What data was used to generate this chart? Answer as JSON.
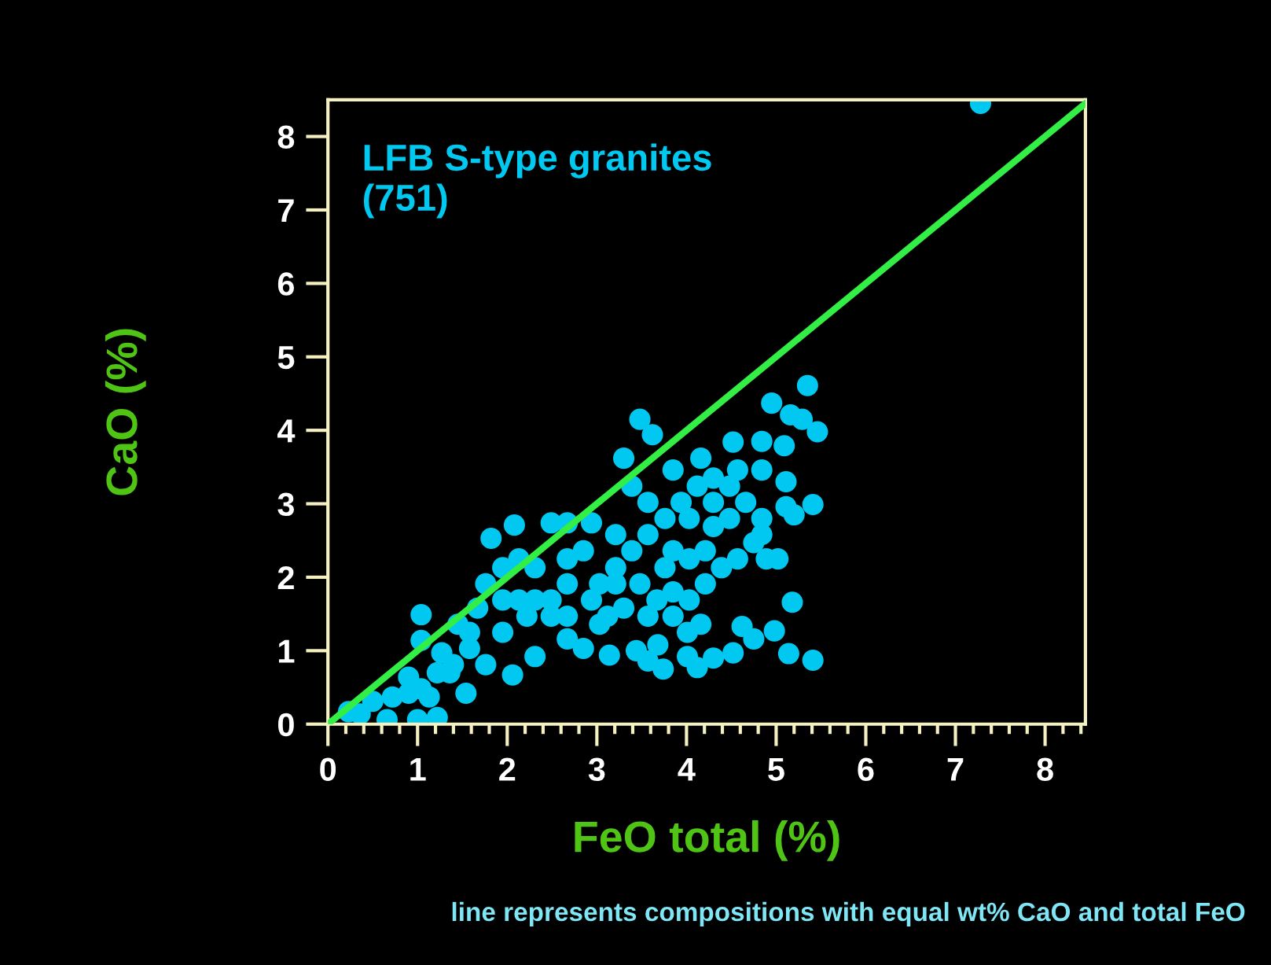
{
  "chart_data": {
    "type": "scatter",
    "xlabel": "FeO total (%)",
    "ylabel": "CaO (%)",
    "xlim": [
      0,
      8.45
    ],
    "ylim": [
      0,
      8.5
    ],
    "xticks": [
      0,
      1,
      2,
      3,
      4,
      5,
      6,
      7,
      8
    ],
    "yticks": [
      0,
      1,
      2,
      3,
      4,
      5,
      6,
      7,
      8
    ],
    "grid": false,
    "legend": false,
    "annotations": [
      "line represents compositions with equal wt% CaO and total FeO"
    ],
    "series": [
      {
        "name": "LFB S-type granites\n(751)",
        "color": "#00c8f0",
        "marker": "circle",
        "x": [
          7.28,
          5.35,
          4.95,
          5.16,
          5.29,
          5.46,
          3.48,
          3.62,
          3.3,
          4.16,
          4.52,
          4.84,
          5.09,
          5.11,
          5.41,
          5.11,
          5.2,
          1.82,
          2.08,
          2.49,
          2.67,
          2.94,
          1.04,
          5.18,
          4.98,
          5.14,
          5.41,
          4.62,
          4.75,
          4.52,
          4.3,
          4.12,
          4.01,
          4.01,
          4.16,
          3.74,
          3.57,
          3.44,
          3.68,
          3.14,
          2.85,
          2.67,
          2.31,
          2.06,
          1.54,
          1.22,
          1.0,
          0.66,
          0.36,
          0.5,
          0.23,
          0.72,
          0.9,
          0.9,
          1.13,
          1.36,
          1.27,
          1.04,
          1.45,
          1.67,
          1.76,
          1.95,
          2.13,
          2.31,
          2.67,
          2.67,
          2.49,
          2.22,
          1.95,
          1.58,
          1.76,
          3.03,
          3.21,
          3.39,
          3.57,
          3.76,
          3.94,
          4.12,
          4.3,
          4.48,
          4.66,
          4.84,
          4.75,
          4.57,
          4.39,
          4.21,
          4.03,
          3.85,
          3.67,
          3.48,
          3.3,
          3.12,
          2.94,
          2.85,
          3.21,
          3.57,
          3.39,
          3.85,
          4.03,
          4.3,
          4.48,
          4.57,
          4.84,
          5.02,
          4.89,
          4.84,
          3.85,
          4.03,
          4.21,
          3.76,
          4.3,
          2.13,
          2.49,
          1.4,
          1.22,
          1.04,
          1.58,
          1.95,
          2.31,
          2.67,
          3.03,
          3.57,
          3.85,
          3.21
        ],
        "values": [
          8.45,
          4.61,
          4.37,
          4.21,
          4.15,
          3.98,
          4.15,
          3.94,
          3.62,
          3.62,
          3.84,
          3.85,
          3.79,
          3.3,
          2.99,
          2.96,
          2.85,
          2.53,
          2.71,
          2.74,
          2.74,
          2.74,
          1.49,
          1.66,
          1.27,
          0.96,
          0.87,
          1.33,
          1.16,
          0.97,
          0.9,
          0.77,
          0.92,
          1.25,
          1.36,
          0.75,
          0.86,
          1.0,
          1.08,
          0.94,
          1.03,
          1.16,
          0.92,
          0.67,
          0.42,
          0.09,
          0.06,
          0.06,
          0.14,
          0.31,
          0.17,
          0.37,
          0.64,
          0.42,
          0.37,
          0.7,
          0.97,
          1.14,
          1.36,
          1.58,
          1.91,
          2.13,
          2.25,
          2.13,
          2.25,
          1.91,
          1.69,
          1.47,
          1.25,
          1.03,
          0.81,
          1.91,
          2.13,
          2.36,
          2.58,
          2.8,
          3.02,
          3.24,
          3.35,
          3.24,
          3.02,
          2.8,
          2.47,
          2.25,
          2.13,
          1.91,
          1.69,
          1.47,
          1.69,
          1.91,
          1.58,
          1.47,
          1.69,
          2.36,
          2.58,
          3.02,
          3.24,
          3.46,
          2.8,
          2.69,
          2.8,
          3.46,
          3.46,
          2.25,
          2.25,
          2.58,
          2.36,
          2.25,
          2.36,
          2.13,
          3.02,
          1.69,
          1.47,
          0.81,
          0.7,
          0.48,
          1.25,
          1.69,
          1.69,
          1.47,
          1.36,
          1.47,
          1.8,
          1.91
        ]
      },
      {
        "color": "#33ee44",
        "type": "line",
        "marker": "none",
        "x": [
          0,
          8.45
        ],
        "values": [
          0,
          8.45
        ]
      }
    ]
  }
}
